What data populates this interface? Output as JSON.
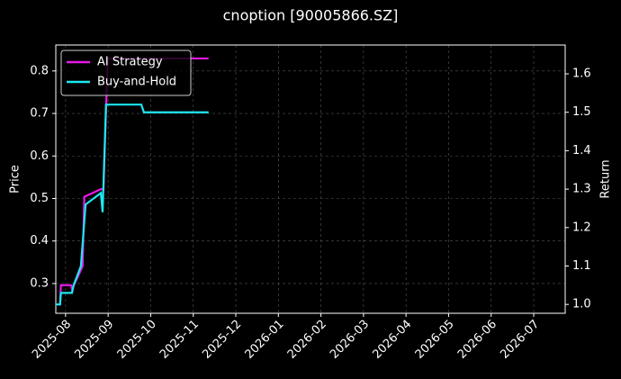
{
  "chart_data": {
    "type": "line",
    "title": "cnoption [90005866.SZ]",
    "ylabel": "Price",
    "y2label": "Return",
    "xlim": [
      -0.23,
      11.74
    ],
    "xticks": [
      {
        "value": 0,
        "label": "2025-08"
      },
      {
        "value": 1,
        "label": "2025-09"
      },
      {
        "value": 2,
        "label": "2025-10"
      },
      {
        "value": 3,
        "label": "2025-11"
      },
      {
        "value": 4,
        "label": "2025-12"
      },
      {
        "value": 5,
        "label": "2026-01"
      },
      {
        "value": 6,
        "label": "2026-02"
      },
      {
        "value": 7,
        "label": "2026-03"
      },
      {
        "value": 8,
        "label": "2026-04"
      },
      {
        "value": 9,
        "label": "2026-05"
      },
      {
        "value": 10,
        "label": "2026-06"
      },
      {
        "value": 11,
        "label": "2026-07"
      }
    ],
    "ylim": [
      0.23,
      0.861
    ],
    "yticks": [
      0.3,
      0.4,
      0.5,
      0.6,
      0.7,
      0.8
    ],
    "y2lim": [
      0.977,
      1.675
    ],
    "y2ticks": [
      {
        "value": 1.0,
        "label": "1.0"
      },
      {
        "value": 1.1,
        "label": "1.1"
      },
      {
        "value": 1.2,
        "label": "1.2"
      },
      {
        "value": 1.3,
        "label": "1.3"
      },
      {
        "value": 1.4,
        "label": "1.4"
      },
      {
        "value": 1.5,
        "label": "1.5"
      },
      {
        "value": 1.6,
        "label": "1.6"
      }
    ],
    "grid": true,
    "legend": "upper-left",
    "series": [
      {
        "name": "AI Strategy",
        "color": "#e619e6",
        "axis": "y2",
        "x": [
          -0.23,
          -0.13,
          -0.11,
          0.13,
          0.15,
          0.32,
          0.4,
          0.44,
          0.83,
          0.89,
          0.99,
          3.36
        ],
        "values": [
          1.0,
          1.0,
          1.05,
          1.05,
          1.04,
          1.08,
          1.1,
          1.28,
          1.3,
          1.3,
          1.64,
          1.64
        ]
      },
      {
        "name": "Buy-and-Hold",
        "color": "#1ee6f0",
        "axis": "y2",
        "x": [
          -0.23,
          -0.13,
          -0.11,
          0.15,
          0.19,
          0.36,
          0.47,
          0.83,
          0.87,
          0.95,
          1.78,
          1.84,
          3.36
        ],
        "values": [
          1.0,
          1.0,
          1.03,
          1.03,
          1.05,
          1.1,
          1.26,
          1.29,
          1.24,
          1.52,
          1.52,
          1.5,
          1.5
        ]
      }
    ]
  }
}
